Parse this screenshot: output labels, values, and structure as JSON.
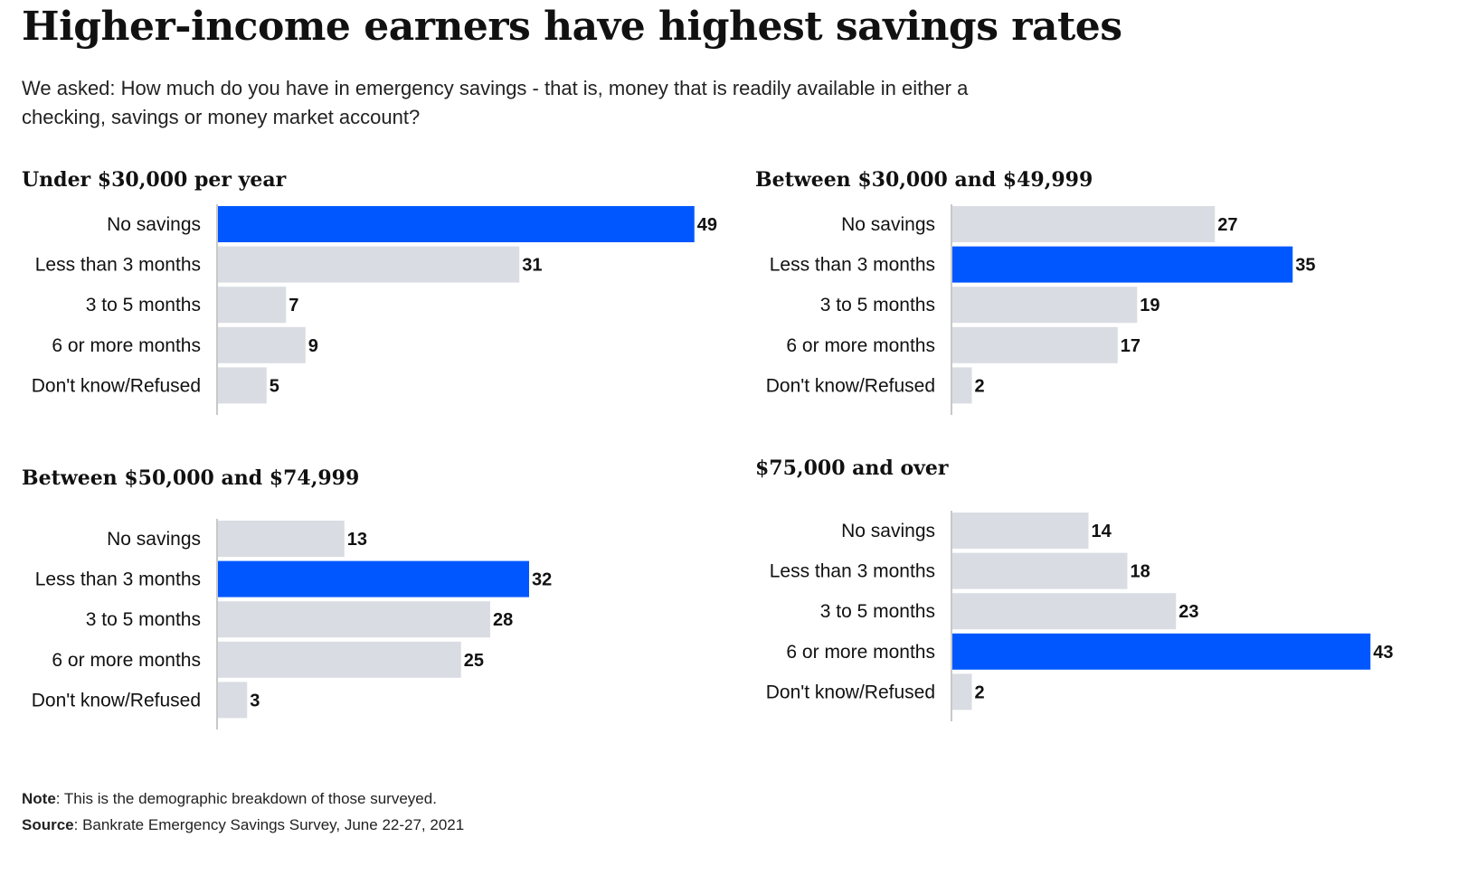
{
  "title": "Higher-income earners have highest savings rates",
  "subtitle": "We asked: How much do you have in emergency savings - that is, money that is readily available in either a checking, savings or money market account?",
  "colors": {
    "highlight": "#0057ff",
    "bar": "#d9dce2",
    "axis": "#c8c8c8",
    "text": "#111111"
  },
  "footer": {
    "note_label": "Note",
    "note_text": ": This is the demographic breakdown of those surveyed.",
    "source_label": "Source",
    "source_text": ": Bankrate Emergency Savings Survey, June 22-27, 2021"
  },
  "chart_data": [
    {
      "type": "bar",
      "orientation": "horizontal",
      "title": "Under $30,000 per year",
      "categories": [
        "No savings",
        "Less than 3 months",
        "3 to 5 months",
        "6 or more months",
        "Don't know/Refused"
      ],
      "values": [
        49,
        31,
        7,
        9,
        5
      ],
      "highlight_index": 0
    },
    {
      "type": "bar",
      "orientation": "horizontal",
      "title": "Between $30,000 and $49,999",
      "categories": [
        "No savings",
        "Less than 3 months",
        "3 to 5 months",
        "6 or more months",
        "Don't know/Refused"
      ],
      "values": [
        27,
        35,
        19,
        17,
        2
      ],
      "highlight_index": 1
    },
    {
      "type": "bar",
      "orientation": "horizontal",
      "title": "Between $50,000 and $74,999",
      "categories": [
        "No savings",
        "Less than 3 months",
        "3 to 5 months",
        "6 or more months",
        "Don't know/Refused"
      ],
      "values": [
        13,
        32,
        28,
        25,
        3
      ],
      "highlight_index": 1
    },
    {
      "type": "bar",
      "orientation": "horizontal",
      "title": "$75,000 and over",
      "categories": [
        "No savings",
        "Less than 3 months",
        "3 to 5 months",
        "6 or more months",
        "Don't know/Refused"
      ],
      "values": [
        14,
        18,
        23,
        43,
        2
      ],
      "highlight_index": 3
    }
  ]
}
